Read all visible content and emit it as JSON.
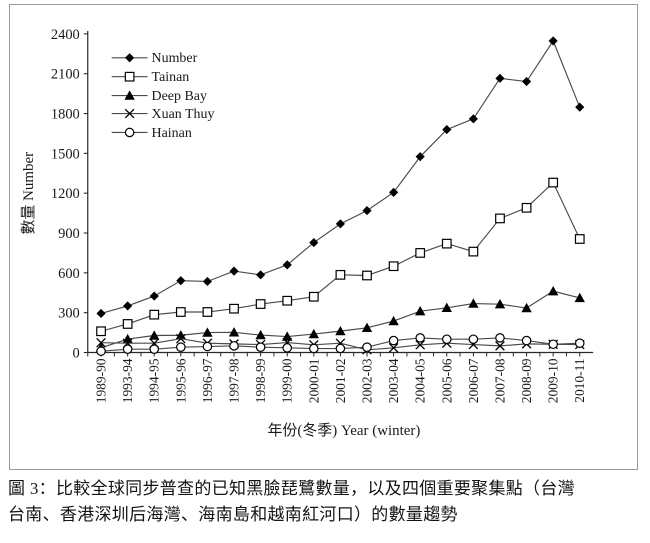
{
  "figure": {
    "caption_line1": "圖 3：比較全球同步普查的已知黑臉琵鷺數量，以及四個重要聚集點（台灣",
    "caption_line2": "台南、香港深圳后海灣、海南島和越南紅河口）的數量趨勢"
  },
  "colors": {
    "background": "#ffffff",
    "axis": "#2a2a2a",
    "series_line": "#4a4a4a",
    "marker": "#000000",
    "text": "#1a1a1a",
    "border": "#9a9a9a"
  },
  "chart_data": {
    "type": "line",
    "title": "",
    "xlabel": "年份(冬季)  Year (winter)",
    "ylabel": "數量  Number",
    "ylim": [
      0,
      2400
    ],
    "ytick_step": 300,
    "ytick_labels": [
      "0",
      "300",
      "600",
      "900",
      "1200",
      "1500",
      "1800",
      "2100",
      "2400"
    ],
    "x_tick_label_rotation": 90,
    "grid": false,
    "legend_position": "upper-left-inside",
    "categories": [
      "1989-90",
      "1993-94",
      "1994-95",
      "1995-96",
      "1996-97",
      "1997-98",
      "1998-99",
      "1999-00",
      "2000-01",
      "2001-02",
      "2002-03",
      "2003-04",
      "2004-05",
      "2005-06",
      "2006-07",
      "2007-08",
      "2008-09",
      "2009-10",
      "2010-11"
    ],
    "series": [
      {
        "name": "Number",
        "marker": "diamond-filled",
        "values": [
          294,
          351,
          425,
          541,
          535,
          613,
          585,
          660,
          828,
          969,
          1069,
          1206,
          1475,
          1679,
          1760,
          2065,
          2041,
          2347,
          1848
        ]
      },
      {
        "name": "Tainan",
        "marker": "square-open",
        "values": [
          160,
          215,
          285,
          305,
          305,
          330,
          365,
          390,
          420,
          585,
          580,
          650,
          750,
          820,
          760,
          1010,
          1090,
          1280,
          855
        ]
      },
      {
        "name": "Deep Bay",
        "marker": "triangle-filled",
        "values": [
          35,
          101,
          128,
          130,
          150,
          152,
          131,
          120,
          139,
          161,
          186,
          237,
          311,
          337,
          369,
          364,
          335,
          462,
          411
        ]
      },
      {
        "name": "Xuan Thuy",
        "marker": "x",
        "values": [
          74,
          70,
          70,
          104,
          70,
          65,
          60,
          75,
          58,
          70,
          20,
          35,
          58,
          70,
          60,
          50,
          65,
          62,
          60
        ]
      },
      {
        "name": "Hainan",
        "marker": "circle-open",
        "values": [
          10,
          25,
          25,
          40,
          45,
          50,
          40,
          35,
          30,
          30,
          40,
          90,
          110,
          100,
          100,
          110,
          90,
          62,
          70
        ]
      }
    ]
  }
}
